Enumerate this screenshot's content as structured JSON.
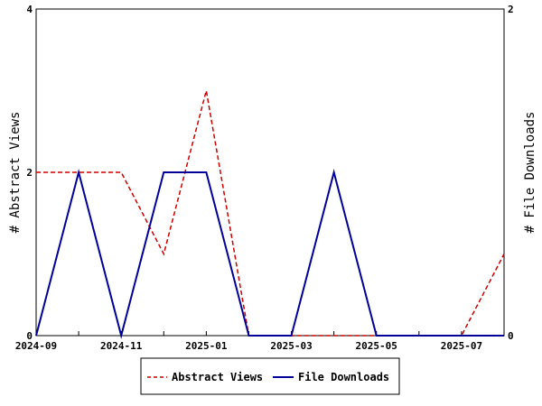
{
  "chart_data": {
    "type": "line",
    "x": [
      "2024-09",
      "2024-10",
      "2024-11",
      "2024-12",
      "2025-01",
      "2025-02",
      "2025-03",
      "2025-04",
      "2025-05",
      "2025-06",
      "2025-07",
      "2025-08"
    ],
    "x_tick_labels": [
      "2024-09",
      "2024-11",
      "2025-01",
      "2025-03",
      "2025-05",
      "2025-07"
    ],
    "y_left": {
      "label": "# Abstract Views",
      "range": [
        0,
        4
      ],
      "ticks": [
        "0",
        "2",
        "4"
      ]
    },
    "y_right": {
      "label": "# File Downloads",
      "range": [
        0,
        2
      ],
      "ticks": [
        "0",
        "2"
      ]
    },
    "series": [
      {
        "name": "Abstract Views",
        "axis": "left",
        "color": "#cc0000",
        "style": "dashed",
        "values": [
          2,
          2,
          2,
          1,
          3,
          0,
          0,
          0,
          0,
          0,
          0,
          1
        ]
      },
      {
        "name": "File Downloads",
        "axis": "right",
        "color": "#000099",
        "style": "solid",
        "values": [
          0,
          1,
          0,
          1,
          1,
          0,
          0,
          1,
          0,
          0,
          0,
          0
        ]
      }
    ],
    "legend_position": "bottom-center",
    "grid": false
  }
}
